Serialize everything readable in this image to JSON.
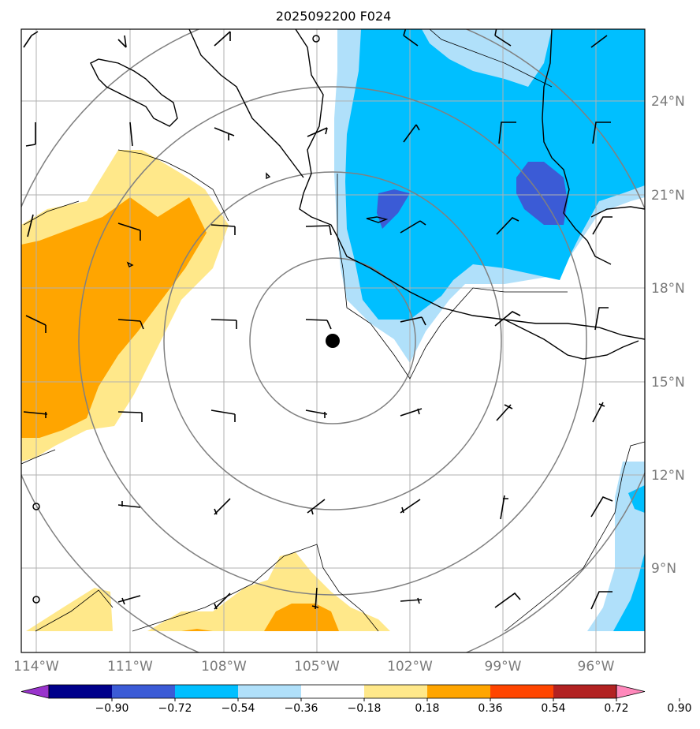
{
  "title": "2025092200 F024",
  "lon_labels": [
    "114°W",
    "111°W",
    "108°W",
    "105°W",
    "102°W",
    "99°W",
    "96°W"
  ],
  "lat_labels": [
    "24°N",
    "21°N",
    "18°N",
    "15°N",
    "12°N",
    "9°N"
  ],
  "colorbar": {
    "labels": [
      "−0.90",
      "−0.72",
      "−0.54",
      "−0.36",
      "−0.18",
      "0.18",
      "0.36",
      "0.54",
      "0.72",
      "0.90"
    ],
    "colors": [
      "#9933cc",
      "#00008b",
      "#3b5bd6",
      "#00bfff",
      "#b0e0fa",
      "#ffffff",
      "#ffe88a",
      "#ffa500",
      "#ff4500",
      "#b22222",
      "#ff88bb"
    ]
  },
  "colors": {
    "light_blue": "#b0e0fa",
    "blue": "#00bfff",
    "dark_blue": "#3b5bd6",
    "light_yellow": "#ffe88a",
    "orange": "#ffa500",
    "grid": "#b0b0b0",
    "ring": "#808080"
  },
  "storm_center": {
    "lon": -104.6,
    "lat": 16.3
  }
}
